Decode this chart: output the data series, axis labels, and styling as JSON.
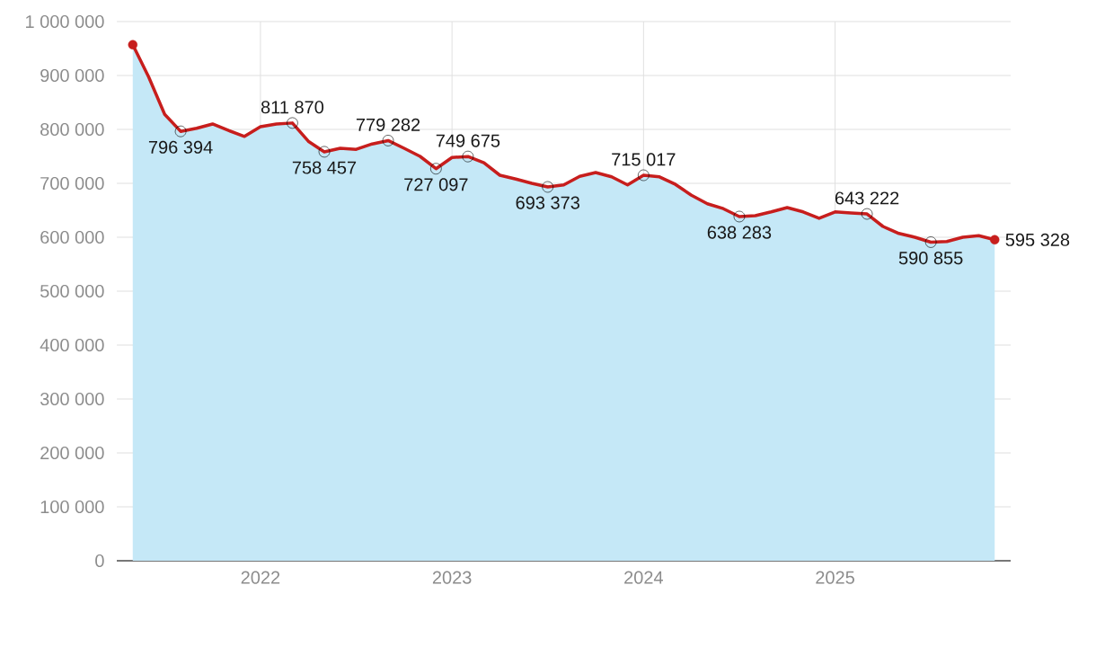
{
  "chart_data": {
    "type": "area",
    "x": [
      "2021-05",
      "2021-06",
      "2021-07",
      "2021-08",
      "2021-09",
      "2021-10",
      "2021-11",
      "2021-12",
      "2022-01",
      "2022-02",
      "2022-03",
      "2022-04",
      "2022-05",
      "2022-06",
      "2022-07",
      "2022-08",
      "2022-09",
      "2022-10",
      "2022-11",
      "2022-12",
      "2023-01",
      "2023-02",
      "2023-03",
      "2023-04",
      "2023-05",
      "2023-06",
      "2023-07",
      "2023-08",
      "2023-09",
      "2023-10",
      "2023-11",
      "2023-12",
      "2024-01",
      "2024-02",
      "2024-03",
      "2024-04",
      "2024-05",
      "2024-06",
      "2024-07",
      "2024-08",
      "2024-09",
      "2024-10",
      "2024-11",
      "2024-12",
      "2025-01",
      "2025-02",
      "2025-03",
      "2025-04",
      "2025-05",
      "2025-06",
      "2025-07",
      "2025-08",
      "2025-09",
      "2025-10",
      "2025-11"
    ],
    "series": [
      {
        "color": "#c5e8f7",
        "values": [
          957000,
          897000,
          828000,
          796394,
          802000,
          810000,
          798000,
          787000,
          805000,
          810000,
          811870,
          778000,
          758457,
          765000,
          763000,
          773000,
          779282,
          765000,
          750000,
          727097,
          748000,
          749675,
          738000,
          715000,
          708000,
          700000,
          693373,
          697000,
          713000,
          720000,
          712000,
          697000,
          715017,
          712000,
          698000,
          678000,
          662000,
          653000,
          638283,
          640000,
          647000,
          655000,
          647000,
          635000,
          647000,
          645000,
          643222,
          620000,
          607000,
          600000,
          590855,
          592000,
          600000,
          603000,
          595328
        ]
      },
      {
        "type": "line",
        "color": "#c71e1d",
        "values": [
          957000,
          897000,
          828000,
          796394,
          802000,
          810000,
          798000,
          787000,
          805000,
          810000,
          811870,
          778000,
          758457,
          765000,
          763000,
          773000,
          779282,
          765000,
          750000,
          727097,
          748000,
          749675,
          738000,
          715000,
          708000,
          700000,
          693373,
          697000,
          713000,
          720000,
          712000,
          697000,
          715017,
          712000,
          698000,
          678000,
          662000,
          653000,
          638283,
          640000,
          647000,
          655000,
          647000,
          635000,
          647000,
          645000,
          643222,
          620000,
          607000,
          600000,
          590855,
          592000,
          600000,
          603000,
          595328
        ],
        "value_labels": [
          null,
          null,
          null,
          "796 394",
          null,
          null,
          null,
          null,
          null,
          null,
          "811 870",
          null,
          "758 457",
          null,
          null,
          null,
          "779 282",
          null,
          null,
          "727 097",
          null,
          "749 675",
          null,
          null,
          null,
          null,
          "693 373",
          null,
          null,
          null,
          null,
          null,
          "715 017",
          null,
          null,
          null,
          null,
          null,
          "638 283",
          null,
          null,
          null,
          null,
          null,
          null,
          null,
          "643 222",
          null,
          null,
          null,
          "590 855",
          null,
          null,
          null,
          "595 328"
        ]
      }
    ],
    "xlim": [
      "2021-04",
      "2025-12"
    ],
    "xticks": [
      "2022",
      "2023",
      "2024",
      "2025"
    ],
    "ylim": [
      0,
      1000000
    ],
    "yticks": [
      {
        "value": 0,
        "label": "0"
      },
      {
        "value": 100000,
        "label": "100 000"
      },
      {
        "value": 200000,
        "label": "200 000"
      },
      {
        "value": 300000,
        "label": "300 000"
      },
      {
        "value": 400000,
        "label": "400 000"
      },
      {
        "value": 500000,
        "label": "500 000"
      },
      {
        "value": 600000,
        "label": "600 000"
      },
      {
        "value": 700000,
        "label": "700 000"
      },
      {
        "value": 800000,
        "label": "800 000"
      },
      {
        "value": 900000,
        "label": "900 000"
      },
      {
        "value": 1000000,
        "label": "1 000 000"
      }
    ],
    "grid": true
  }
}
